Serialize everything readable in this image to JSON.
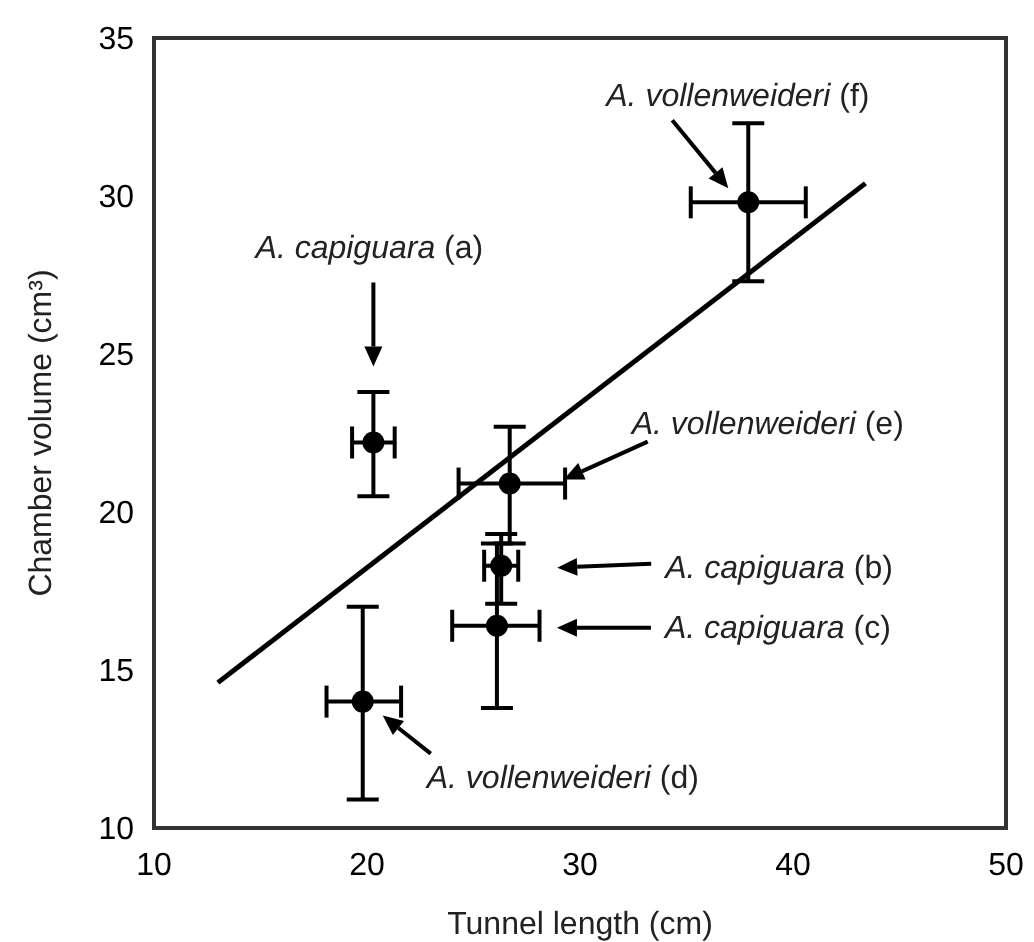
{
  "chart_data": {
    "type": "scatter",
    "xlabel": "Tunnel length (cm)",
    "ylabel": "Chamber volume (cm³)",
    "xlim": [
      10,
      50
    ],
    "ylim": [
      10,
      35
    ],
    "xticks": [
      10,
      20,
      30,
      40,
      50
    ],
    "yticks": [
      10,
      15,
      20,
      25,
      30,
      35
    ],
    "grid": false,
    "legend": false,
    "marker": "circle",
    "series": [
      {
        "color": "#000000",
        "x": [
          20.3,
          26.3,
          26.1,
          19.8,
          26.7,
          37.9
        ],
        "values": [
          22.2,
          18.3,
          16.4,
          14.0,
          20.9,
          29.8
        ],
        "errors": [
          [
            20.5,
            23.8
          ],
          [
            17.1,
            19.3
          ],
          [
            13.8,
            19.0
          ],
          [
            10.9,
            17.0
          ],
          [
            19.0,
            22.7
          ],
          [
            27.3,
            32.3
          ]
        ],
        "xerrors": [
          [
            19.3,
            21.3
          ],
          [
            25.5,
            27.1
          ],
          [
            24.0,
            28.1
          ],
          [
            18.1,
            21.6
          ],
          [
            24.3,
            29.3
          ],
          [
            35.2,
            40.6
          ]
        ]
      },
      {
        "type": "line",
        "color": "#000000",
        "x": [
          13,
          43.4
        ],
        "values": [
          14.6,
          30.4
        ],
        "marker": "none",
        "line_style": "solid"
      }
    ],
    "annotations": [
      "A. capiguara (a)",
      "A. capiguara (b)",
      "A. capiguara (c)",
      "A. vollenweideri (d)",
      "A. vollenweideri (e)",
      "A. vollenweideri (f)"
    ]
  }
}
